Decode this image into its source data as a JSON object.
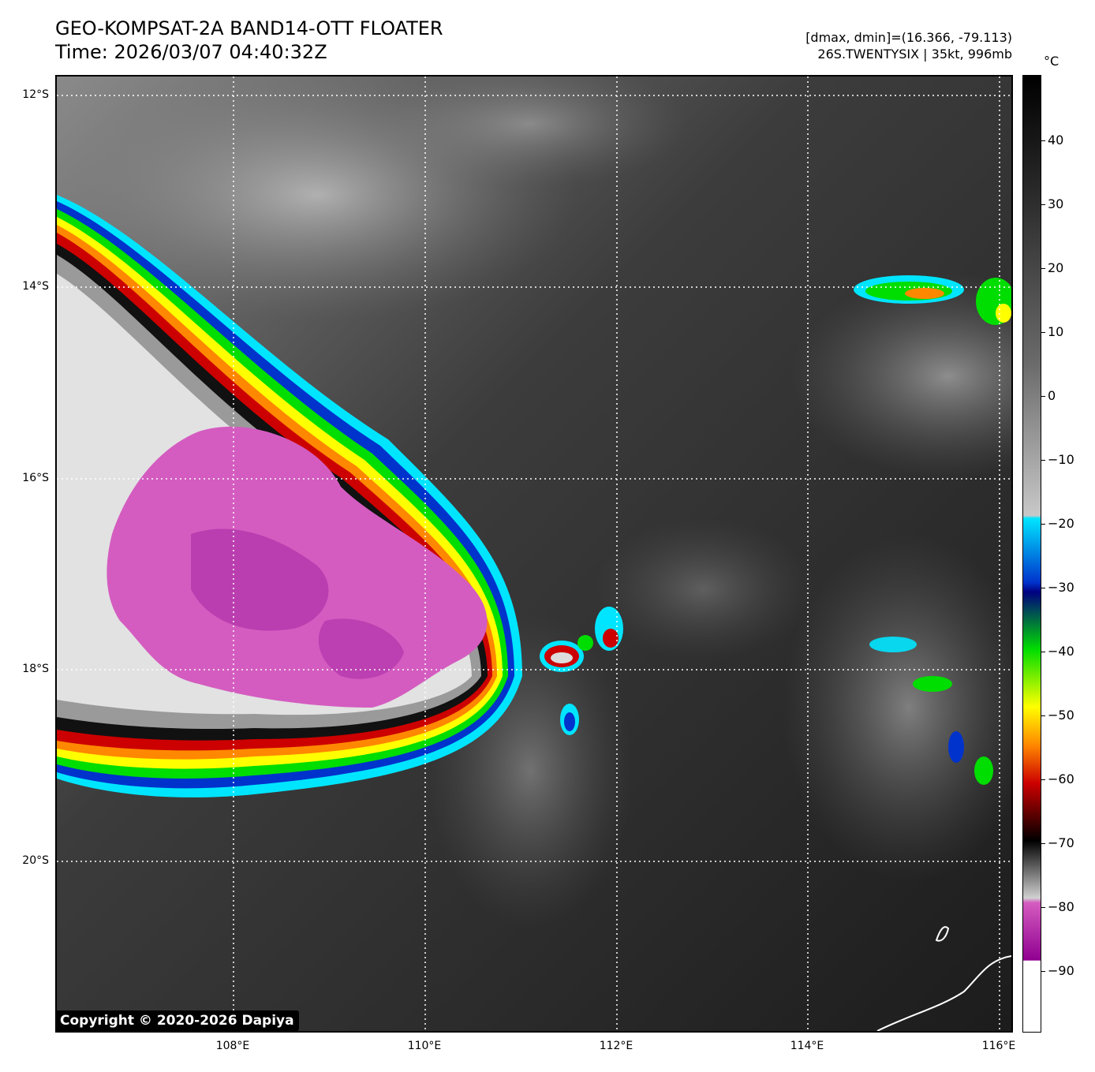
{
  "header": {
    "title_line1": "GEO-KOMPSAT-2A BAND14-OTT FLOATER",
    "title_line2": "Time: 2026/03/07 04:40:32Z",
    "info_line1": "[dmax, dmin]=(16.366, -79.113)",
    "info_line2": "26S.TWENTYSIX | 35kt, 996mb"
  },
  "map": {
    "lat_labels": [
      "12°S",
      "14°S",
      "16°S",
      "18°S",
      "20°S"
    ],
    "lon_labels": [
      "108°E",
      "110°E",
      "112°E",
      "114°E",
      "116°E"
    ],
    "copyright": "Copyright © 2020-2026 Dapiya"
  },
  "colorbar": {
    "unit": "°C",
    "ticks": [
      "40",
      "30",
      "20",
      "10",
      "0",
      "−10",
      "−20",
      "−30",
      "−40",
      "−50",
      "−60",
      "−70",
      "−80",
      "−90"
    ],
    "colors": {
      "magenta": "#d45cc0",
      "red": "#cc0000",
      "yellow": "#ffff00",
      "green": "#00dd00",
      "blue": "#0033cc",
      "cyan": "#00e5ff"
    }
  }
}
